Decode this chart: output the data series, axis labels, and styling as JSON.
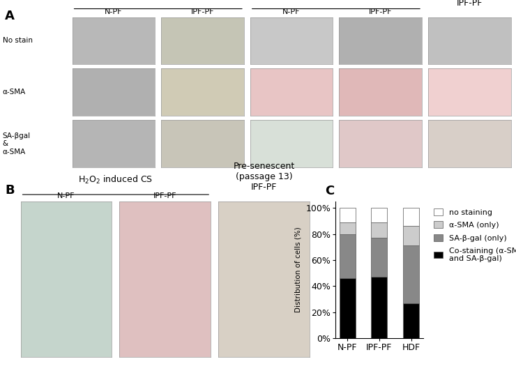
{
  "panel_A_label": "A",
  "panel_B_label": "B",
  "panel_C_label": "C",
  "row_labels": [
    "No stain",
    "α-SMA",
    "SA-βgal\n&\nα-SMA"
  ],
  "bar_categories": [
    "N-PF",
    "IPF-PF",
    "HDF"
  ],
  "bar_data": {
    "co_staining": [
      46,
      47,
      27
    ],
    "sa_bgal_only": [
      34,
      30,
      44
    ],
    "asma_only": [
      9,
      12,
      15
    ],
    "no_staining": [
      11,
      11,
      14
    ]
  },
  "bar_colors": {
    "co_staining": "#000000",
    "sa_bgal_only": "#888888",
    "asma_only": "#cccccc",
    "no_staining": "#ffffff"
  },
  "bar_edge_color": "#555555",
  "ylabel_C": "Distribution of cells (%)",
  "yticks_C": [
    0,
    20,
    40,
    60,
    80,
    100
  ],
  "ytick_labels_C": [
    "0%",
    "20%",
    "40%",
    "60%",
    "80%",
    "100%"
  ],
  "legend_labels": [
    "no staining",
    "α-SMA (only)",
    "SA-β-gal (only)",
    "Co-staining (α-SMA\nand SA-β-gal)"
  ],
  "background_color": "#ffffff",
  "font_size_tick": 9,
  "font_size_legend": 8,
  "cell_colors_A": [
    [
      "#b8b8b8",
      "#c5c5b5",
      "#c8c8c8",
      "#b0b0b0",
      "#c0c0c0"
    ],
    [
      "#b0b0b0",
      "#d0cbb5",
      "#e8c5c5",
      "#e0b8b8",
      "#f0d0d0"
    ],
    [
      "#b5b5b5",
      "#c8c5b8",
      "#d8e0d8",
      "#e0c8c8",
      "#d8cfc8"
    ]
  ],
  "cell_colors_B": [
    "#c5d5cc",
    "#dfc0c0",
    "#d8d0c5"
  ]
}
